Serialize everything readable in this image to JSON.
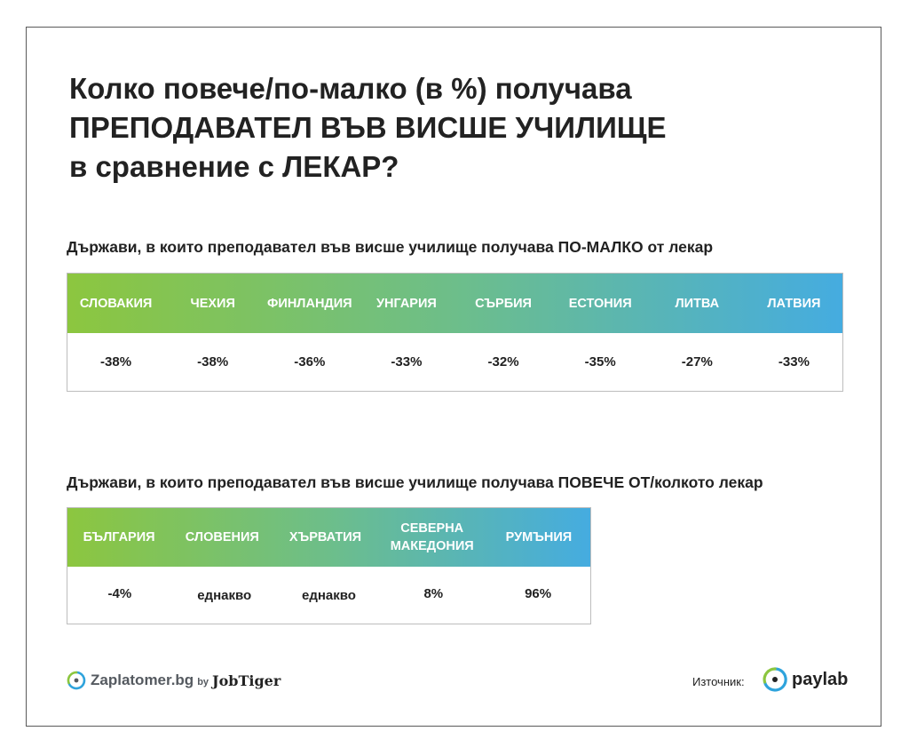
{
  "title_lines": [
    "Колко повече/по-малко (в %) получава",
    "ПРЕПОДАВАТЕЛ ВЪВ ВИСШЕ УЧИЛИЩЕ",
    "в сравнение с ЛЕКАР?"
  ],
  "section1": {
    "subtitle": "Държави, в които преподавател във висше училище получава ПО-МАЛКО от лекар",
    "columns": [
      {
        "country": "СЛОВАКИЯ",
        "value": "-38%"
      },
      {
        "country": "ЧЕХИЯ",
        "value": "-38%"
      },
      {
        "country": "ФИНЛАНДИЯ",
        "value": "-36%"
      },
      {
        "country": "УНГАРИЯ",
        "value": "-33%"
      },
      {
        "country": "СЪРБИЯ",
        "value": "-32%"
      },
      {
        "country": "ЕСТОНИЯ",
        "value": "-35%"
      },
      {
        "country": "ЛИТВА",
        "value": "-27%"
      },
      {
        "country": "ЛАТВИЯ",
        "value": "-33%"
      }
    ]
  },
  "section2": {
    "subtitle": "Държави, в които преподавател във висше училище получава ПОВЕЧЕ ОТ/колкото лекар",
    "columns": [
      {
        "country": "БЪЛГАРИЯ",
        "value": "-4%"
      },
      {
        "country": "СЛОВЕНИЯ",
        "value": "еднакво"
      },
      {
        "country": "ХЪРВАТИЯ",
        "value": "еднакво"
      },
      {
        "country": "СЕВЕРНА МАКЕДОНИЯ",
        "value": "8%"
      },
      {
        "country": "РУМЪНИЯ",
        "value": "96%"
      }
    ]
  },
  "footer": {
    "brand_left": "Zaplatomer.bg",
    "by": "by",
    "brand_partner": "JobTiger",
    "source_label": "Източник:",
    "source_brand": "paylab"
  },
  "colors": {
    "gradient_start": "#8cc63f",
    "gradient_end": "#45ace0",
    "logo_blue": "#2ea3dc",
    "logo_green": "#8cc63f"
  }
}
